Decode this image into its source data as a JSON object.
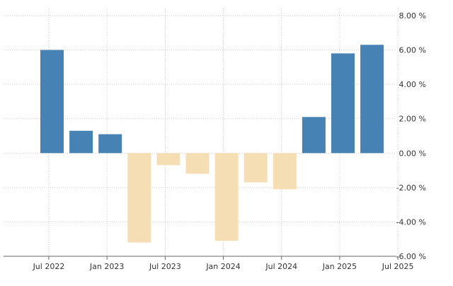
{
  "chart_data": {
    "type": "bar",
    "categories": [
      "Q3 2022",
      "Q4 2022",
      "Q1 2023",
      "Q2 2023",
      "Q3 2023",
      "Q4 2023",
      "Q1 2024",
      "Q2 2024",
      "Q3 2024",
      "Q4 2024",
      "Q1 2025",
      "Q2 2025"
    ],
    "values": [
      6.0,
      1.3,
      1.1,
      -5.2,
      -0.7,
      -1.2,
      -5.1,
      -1.7,
      -2.1,
      2.1,
      5.8,
      6.3
    ],
    "x_tick_labels": [
      "Jul 2022",
      "Jan 2023",
      "Jul 2023",
      "Jan 2024",
      "Jul 2024",
      "Jan 2025",
      "Jul 2025"
    ],
    "y_tick_labels": [
      "8.00 %",
      "6.00 %",
      "4.00 %",
      "2.00 %",
      "0.00 %",
      "-2.00 %",
      "-4.00 %",
      "-6.00 %"
    ],
    "ylim": [
      -6,
      8
    ],
    "y_axis_position": "right",
    "grid": true,
    "colors": {
      "positive": "#4682b4",
      "negative": "#f5deb3",
      "grid": "#cccccc",
      "axis": "#666666"
    },
    "title": "",
    "xlabel": "",
    "ylabel": ""
  }
}
